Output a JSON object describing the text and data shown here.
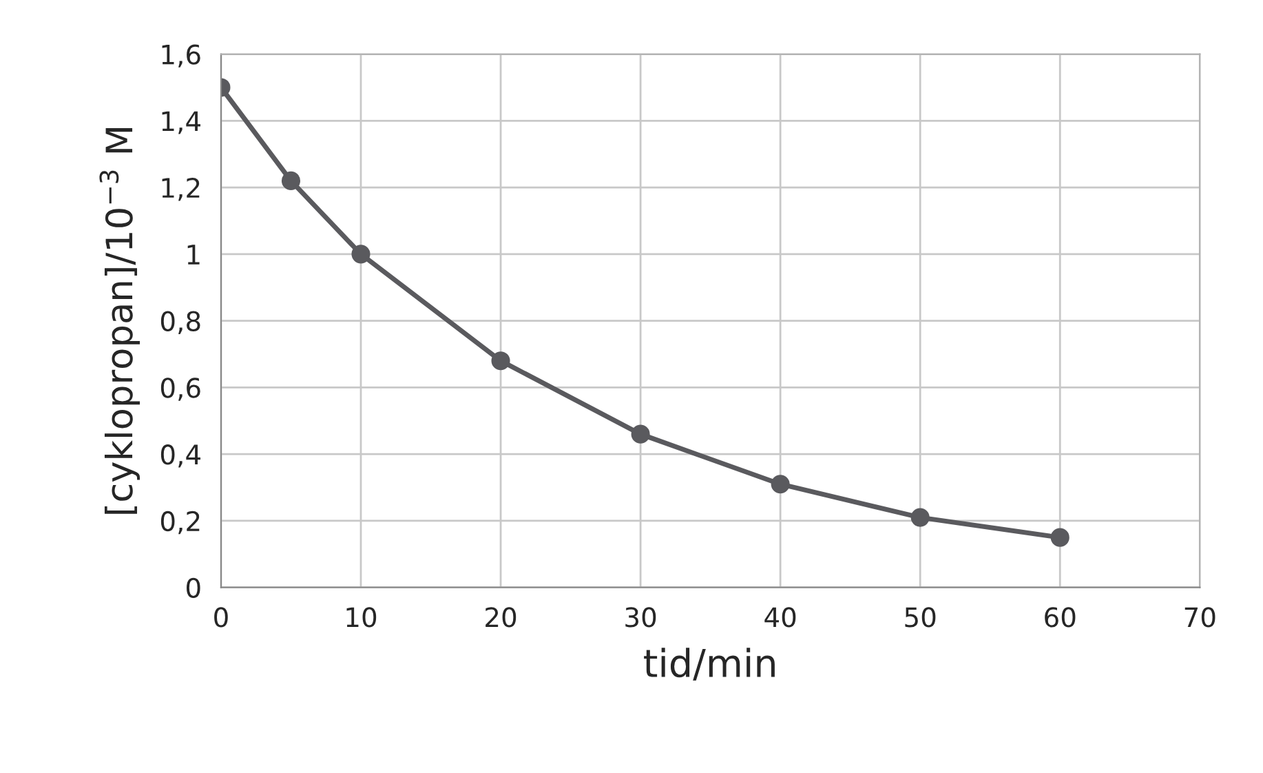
{
  "chart_data": {
    "type": "line",
    "xlabel": "tid/min",
    "ylabel": "[cyklopropan]/10$^{−3}$ M",
    "x": [
      0,
      5,
      10,
      20,
      30,
      40,
      50,
      60
    ],
    "series": [
      {
        "color": "#5a5a5e",
        "values": [
          1.5,
          1.22,
          1.0,
          0.68,
          0.46,
          0.31,
          0.21,
          0.15
        ]
      }
    ],
    "xlim": [
      0,
      70
    ],
    "xticks": [
      0,
      10,
      20,
      30,
      40,
      50,
      60,
      70
    ],
    "ylim": [
      0,
      1.6
    ],
    "yticks": [
      0,
      {
        "value": 0.2,
        "label": "0,2"
      },
      {
        "value": 0.4,
        "label": "0,4"
      },
      {
        "value": 0.6,
        "label": "0,6"
      },
      {
        "value": 0.8,
        "label": "0,8"
      },
      1,
      {
        "value": 1.2,
        "label": "1,2"
      },
      {
        "value": 1.4,
        "label": "1,4"
      },
      {
        "value": 1.6,
        "label": "1,6"
      }
    ],
    "grid": true,
    "marker": "circle",
    "line_style": "solid",
    "legend": false
  }
}
